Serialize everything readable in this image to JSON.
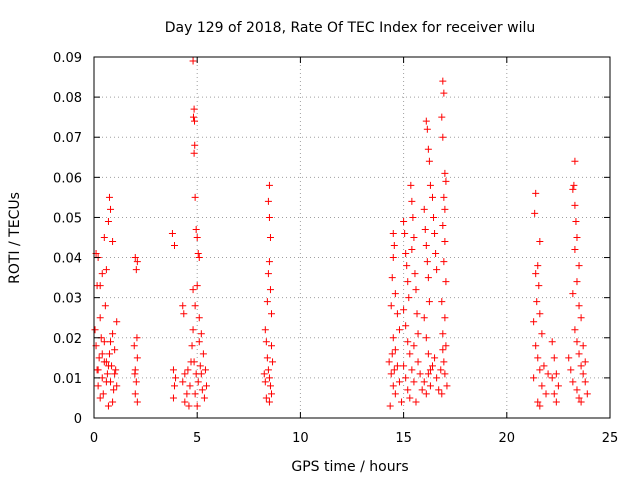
{
  "chart_data": {
    "type": "scatter",
    "title": "Day 129 of 2018, Rate Of TEC Index for receiver wilu",
    "xlabel": "GPS time / hours",
    "ylabel": "ROTI / TECUs",
    "xlim": [
      0,
      25
    ],
    "ylim": [
      0,
      0.09
    ],
    "x_ticks": [
      0,
      5,
      10,
      15,
      20,
      25
    ],
    "x_tick_labels": [
      "0",
      "5",
      "10",
      "15",
      "20",
      "25"
    ],
    "y_ticks": [
      0,
      0.01,
      0.02,
      0.03,
      0.04,
      0.05,
      0.06,
      0.07,
      0.08,
      0.09
    ],
    "y_tick_labels": [
      "0",
      "0.01",
      "0.02",
      "0.03",
      "0.04",
      "0.05",
      "0.06",
      "0.07",
      "0.08",
      "0.09"
    ],
    "grid": true,
    "marker": "+",
    "marker_color": "#ff0000",
    "series": [
      {
        "name": "ROTI",
        "points": [
          [
            0.1,
            0.041
          ],
          [
            0.15,
            0.033
          ],
          [
            0.2,
            0.04
          ],
          [
            0.3,
            0.033
          ],
          [
            0.4,
            0.036
          ],
          [
            0.5,
            0.045
          ],
          [
            0.6,
            0.037
          ],
          [
            0.7,
            0.049
          ],
          [
            0.75,
            0.055
          ],
          [
            0.8,
            0.052
          ],
          [
            0.9,
            0.044
          ],
          [
            0.05,
            0.022
          ],
          [
            0.1,
            0.018
          ],
          [
            0.15,
            0.012
          ],
          [
            0.2,
            0.008
          ],
          [
            0.25,
            0.015
          ],
          [
            0.3,
            0.025
          ],
          [
            0.35,
            0.02
          ],
          [
            0.4,
            0.01
          ],
          [
            0.45,
            0.006
          ],
          [
            0.5,
            0.019
          ],
          [
            0.55,
            0.028
          ],
          [
            0.6,
            0.014
          ],
          [
            0.65,
            0.011
          ],
          [
            0.7,
            0.003
          ],
          [
            0.75,
            0.016
          ],
          [
            0.8,
            0.009
          ],
          [
            0.85,
            0.013
          ],
          [
            0.9,
            0.021
          ],
          [
            0.95,
            0.007
          ],
          [
            1.0,
            0.017
          ],
          [
            1.05,
            0.012
          ],
          [
            1.1,
            0.024
          ],
          [
            0.2,
            0.012
          ],
          [
            0.4,
            0.016
          ],
          [
            0.6,
            0.009
          ],
          [
            0.8,
            0.019
          ],
          [
            1.0,
            0.011
          ],
          [
            0.3,
            0.005
          ],
          [
            0.7,
            0.013
          ],
          [
            0.9,
            0.004
          ],
          [
            0.5,
            0.014
          ],
          [
            1.1,
            0.008
          ],
          [
            2.0,
            0.04
          ],
          [
            2.05,
            0.037
          ],
          [
            2.1,
            0.039
          ],
          [
            1.95,
            0.018
          ],
          [
            2.0,
            0.012
          ],
          [
            2.05,
            0.009
          ],
          [
            2.1,
            0.015
          ],
          [
            2.0,
            0.006
          ],
          [
            2.1,
            0.004
          ],
          [
            1.98,
            0.011
          ],
          [
            2.08,
            0.02
          ],
          [
            3.8,
            0.046
          ],
          [
            3.9,
            0.043
          ],
          [
            3.85,
            0.012
          ],
          [
            3.9,
            0.008
          ],
          [
            3.95,
            0.01
          ],
          [
            3.85,
            0.005
          ],
          [
            4.3,
            0.028
          ],
          [
            4.35,
            0.026
          ],
          [
            4.3,
            0.009
          ],
          [
            4.4,
            0.011
          ],
          [
            4.5,
            0.006
          ],
          [
            4.6,
            0.003
          ],
          [
            4.7,
            0.014
          ],
          [
            4.4,
            0.004
          ],
          [
            4.55,
            0.012
          ],
          [
            4.65,
            0.008
          ],
          [
            4.8,
            0.089
          ],
          [
            4.85,
            0.077
          ],
          [
            4.82,
            0.075
          ],
          [
            4.87,
            0.074
          ],
          [
            4.88,
            0.068
          ],
          [
            4.85,
            0.066
          ],
          [
            4.9,
            0.055
          ],
          [
            4.95,
            0.047
          ],
          [
            5.0,
            0.045
          ],
          [
            5.05,
            0.041
          ],
          [
            5.1,
            0.04
          ],
          [
            4.8,
            0.032
          ],
          [
            4.9,
            0.028
          ],
          [
            5.0,
            0.033
          ],
          [
            5.1,
            0.025
          ],
          [
            5.2,
            0.021
          ],
          [
            4.75,
            0.018
          ],
          [
            4.85,
            0.014
          ],
          [
            4.95,
            0.011
          ],
          [
            5.05,
            0.009
          ],
          [
            5.15,
            0.013
          ],
          [
            5.25,
            0.007
          ],
          [
            5.3,
            0.016
          ],
          [
            5.4,
            0.012
          ],
          [
            5.35,
            0.005
          ],
          [
            5.45,
            0.008
          ],
          [
            4.9,
            0.006
          ],
          [
            5.0,
            0.003
          ],
          [
            5.1,
            0.019
          ],
          [
            5.2,
            0.011
          ],
          [
            4.8,
            0.022
          ],
          [
            8.5,
            0.058
          ],
          [
            8.45,
            0.054
          ],
          [
            8.5,
            0.05
          ],
          [
            8.55,
            0.045
          ],
          [
            8.5,
            0.039
          ],
          [
            8.45,
            0.036
          ],
          [
            8.55,
            0.032
          ],
          [
            8.4,
            0.029
          ],
          [
            8.6,
            0.026
          ],
          [
            8.3,
            0.022
          ],
          [
            8.35,
            0.019
          ],
          [
            8.4,
            0.015
          ],
          [
            8.45,
            0.012
          ],
          [
            8.5,
            0.01
          ],
          [
            8.55,
            0.008
          ],
          [
            8.6,
            0.006
          ],
          [
            8.3,
            0.009
          ],
          [
            8.35,
            0.005
          ],
          [
            8.65,
            0.014
          ],
          [
            8.25,
            0.011
          ],
          [
            8.5,
            0.004
          ],
          [
            8.6,
            0.018
          ],
          [
            14.5,
            0.046
          ],
          [
            14.55,
            0.043
          ],
          [
            14.5,
            0.04
          ],
          [
            14.45,
            0.035
          ],
          [
            14.6,
            0.031
          ],
          [
            14.4,
            0.028
          ],
          [
            14.7,
            0.026
          ],
          [
            14.8,
            0.022
          ],
          [
            14.5,
            0.02
          ],
          [
            14.6,
            0.017
          ],
          [
            14.3,
            0.014
          ],
          [
            14.4,
            0.011
          ],
          [
            14.5,
            0.008
          ],
          [
            14.6,
            0.006
          ],
          [
            14.7,
            0.013
          ],
          [
            14.8,
            0.009
          ],
          [
            14.9,
            0.004
          ],
          [
            14.35,
            0.003
          ],
          [
            14.45,
            0.016
          ],
          [
            14.55,
            0.012
          ],
          [
            15.0,
            0.049
          ],
          [
            15.05,
            0.046
          ],
          [
            15.1,
            0.041
          ],
          [
            15.15,
            0.038
          ],
          [
            15.2,
            0.034
          ],
          [
            15.25,
            0.03
          ],
          [
            15.0,
            0.027
          ],
          [
            15.1,
            0.023
          ],
          [
            15.2,
            0.019
          ],
          [
            15.3,
            0.016
          ],
          [
            15.35,
            0.058
          ],
          [
            15.4,
            0.054
          ],
          [
            15.45,
            0.05
          ],
          [
            15.5,
            0.045
          ],
          [
            15.4,
            0.042
          ],
          [
            15.55,
            0.036
          ],
          [
            15.6,
            0.032
          ],
          [
            15.65,
            0.026
          ],
          [
            15.7,
            0.021
          ],
          [
            15.5,
            0.018
          ],
          [
            15.0,
            0.013
          ],
          [
            15.1,
            0.01
          ],
          [
            15.2,
            0.007
          ],
          [
            15.3,
            0.005
          ],
          [
            15.4,
            0.012
          ],
          [
            15.5,
            0.009
          ],
          [
            15.6,
            0.004
          ],
          [
            15.7,
            0.014
          ],
          [
            15.8,
            0.011
          ],
          [
            15.9,
            0.007
          ],
          [
            16.0,
            0.052
          ],
          [
            16.05,
            0.047
          ],
          [
            16.1,
            0.043
          ],
          [
            16.15,
            0.039
          ],
          [
            16.2,
            0.035
          ],
          [
            16.25,
            0.029
          ],
          [
            16.0,
            0.025
          ],
          [
            16.1,
            0.02
          ],
          [
            16.2,
            0.016
          ],
          [
            16.3,
            0.012
          ],
          [
            16.1,
            0.074
          ],
          [
            16.15,
            0.072
          ],
          [
            16.2,
            0.067
          ],
          [
            16.25,
            0.064
          ],
          [
            16.3,
            0.058
          ],
          [
            16.4,
            0.055
          ],
          [
            16.45,
            0.05
          ],
          [
            16.5,
            0.046
          ],
          [
            16.55,
            0.041
          ],
          [
            16.6,
            0.037
          ],
          [
            16.0,
            0.009
          ],
          [
            16.1,
            0.006
          ],
          [
            16.2,
            0.011
          ],
          [
            16.3,
            0.008
          ],
          [
            16.4,
            0.013
          ],
          [
            16.5,
            0.015
          ],
          [
            16.6,
            0.01
          ],
          [
            16.7,
            0.007
          ],
          [
            16.8,
            0.012
          ],
          [
            16.9,
            0.017
          ],
          [
            16.9,
            0.084
          ],
          [
            16.95,
            0.081
          ],
          [
            16.85,
            0.075
          ],
          [
            16.9,
            0.07
          ],
          [
            17.0,
            0.061
          ],
          [
            17.05,
            0.059
          ],
          [
            16.95,
            0.055
          ],
          [
            17.0,
            0.052
          ],
          [
            16.9,
            0.048
          ],
          [
            17.0,
            0.044
          ],
          [
            16.95,
            0.039
          ],
          [
            17.05,
            0.034
          ],
          [
            16.85,
            0.029
          ],
          [
            17.0,
            0.025
          ],
          [
            16.9,
            0.021
          ],
          [
            17.05,
            0.018
          ],
          [
            16.95,
            0.014
          ],
          [
            17.0,
            0.011
          ],
          [
            17.1,
            0.008
          ],
          [
            16.85,
            0.006
          ],
          [
            21.4,
            0.056
          ],
          [
            21.35,
            0.051
          ],
          [
            21.6,
            0.044
          ],
          [
            21.5,
            0.038
          ],
          [
            21.4,
            0.036
          ],
          [
            21.55,
            0.033
          ],
          [
            21.45,
            0.029
          ],
          [
            21.6,
            0.026
          ],
          [
            21.3,
            0.024
          ],
          [
            21.7,
            0.021
          ],
          [
            21.4,
            0.018
          ],
          [
            21.5,
            0.015
          ],
          [
            21.6,
            0.012
          ],
          [
            21.3,
            0.01
          ],
          [
            21.7,
            0.008
          ],
          [
            21.8,
            0.013
          ],
          [
            21.9,
            0.006
          ],
          [
            22.0,
            0.011
          ],
          [
            21.5,
            0.004
          ],
          [
            21.6,
            0.003
          ],
          [
            22.2,
            0.019
          ],
          [
            22.3,
            0.015
          ],
          [
            22.4,
            0.011
          ],
          [
            22.5,
            0.008
          ],
          [
            22.3,
            0.006
          ],
          [
            22.2,
            0.01
          ],
          [
            22.4,
            0.004
          ],
          [
            23.3,
            0.064
          ],
          [
            23.25,
            0.058
          ],
          [
            23.2,
            0.057
          ],
          [
            23.3,
            0.053
          ],
          [
            23.35,
            0.049
          ],
          [
            23.4,
            0.045
          ],
          [
            23.3,
            0.042
          ],
          [
            23.5,
            0.038
          ],
          [
            23.4,
            0.034
          ],
          [
            23.2,
            0.031
          ],
          [
            23.5,
            0.028
          ],
          [
            23.6,
            0.025
          ],
          [
            23.3,
            0.022
          ],
          [
            23.4,
            0.019
          ],
          [
            23.5,
            0.016
          ],
          [
            23.6,
            0.013
          ],
          [
            23.7,
            0.011
          ],
          [
            23.2,
            0.009
          ],
          [
            23.4,
            0.007
          ],
          [
            23.5,
            0.005
          ],
          [
            23.6,
            0.004
          ],
          [
            23.8,
            0.009
          ],
          [
            23.9,
            0.006
          ],
          [
            23.1,
            0.012
          ],
          [
            23.0,
            0.015
          ],
          [
            23.7,
            0.018
          ],
          [
            23.8,
            0.014
          ]
        ]
      }
    ]
  }
}
